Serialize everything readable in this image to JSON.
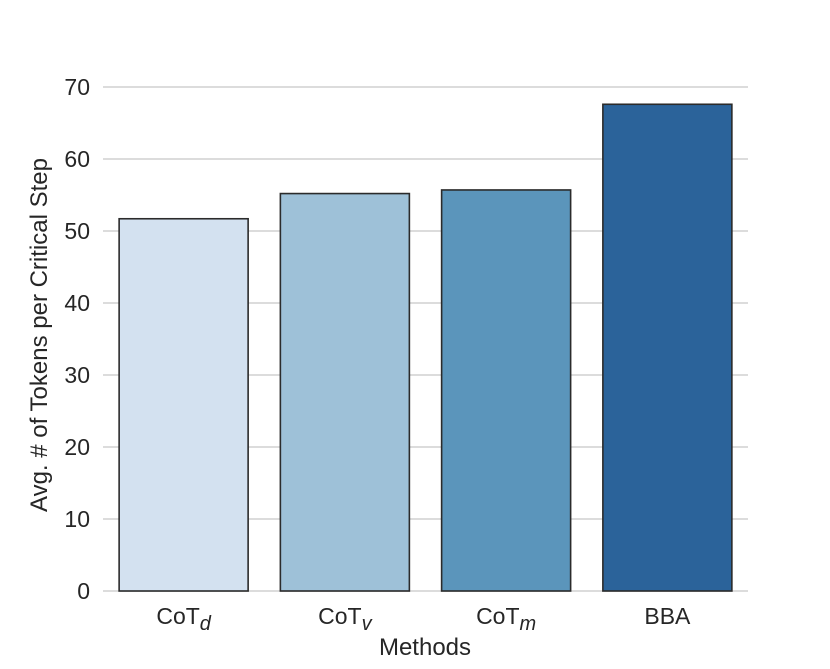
{
  "chart_data": {
    "type": "bar",
    "title": "",
    "xlabel": "Methods",
    "ylabel": "Avg. # of Tokens per Critical Step",
    "categories": [
      {
        "base": "CoT",
        "sub": "d"
      },
      {
        "base": "CoT",
        "sub": "v"
      },
      {
        "base": "CoT",
        "sub": "m"
      },
      {
        "base": "BBA",
        "sub": ""
      }
    ],
    "values": [
      51.7,
      55.2,
      55.7,
      67.6
    ],
    "colors": [
      "#d3e1f0",
      "#9ec1d8",
      "#5b95bb",
      "#2b639a"
    ],
    "ylim": [
      0,
      70
    ],
    "yticks": [
      0,
      10,
      20,
      30,
      40,
      50,
      60,
      70
    ],
    "grid": true,
    "legend": "none"
  }
}
